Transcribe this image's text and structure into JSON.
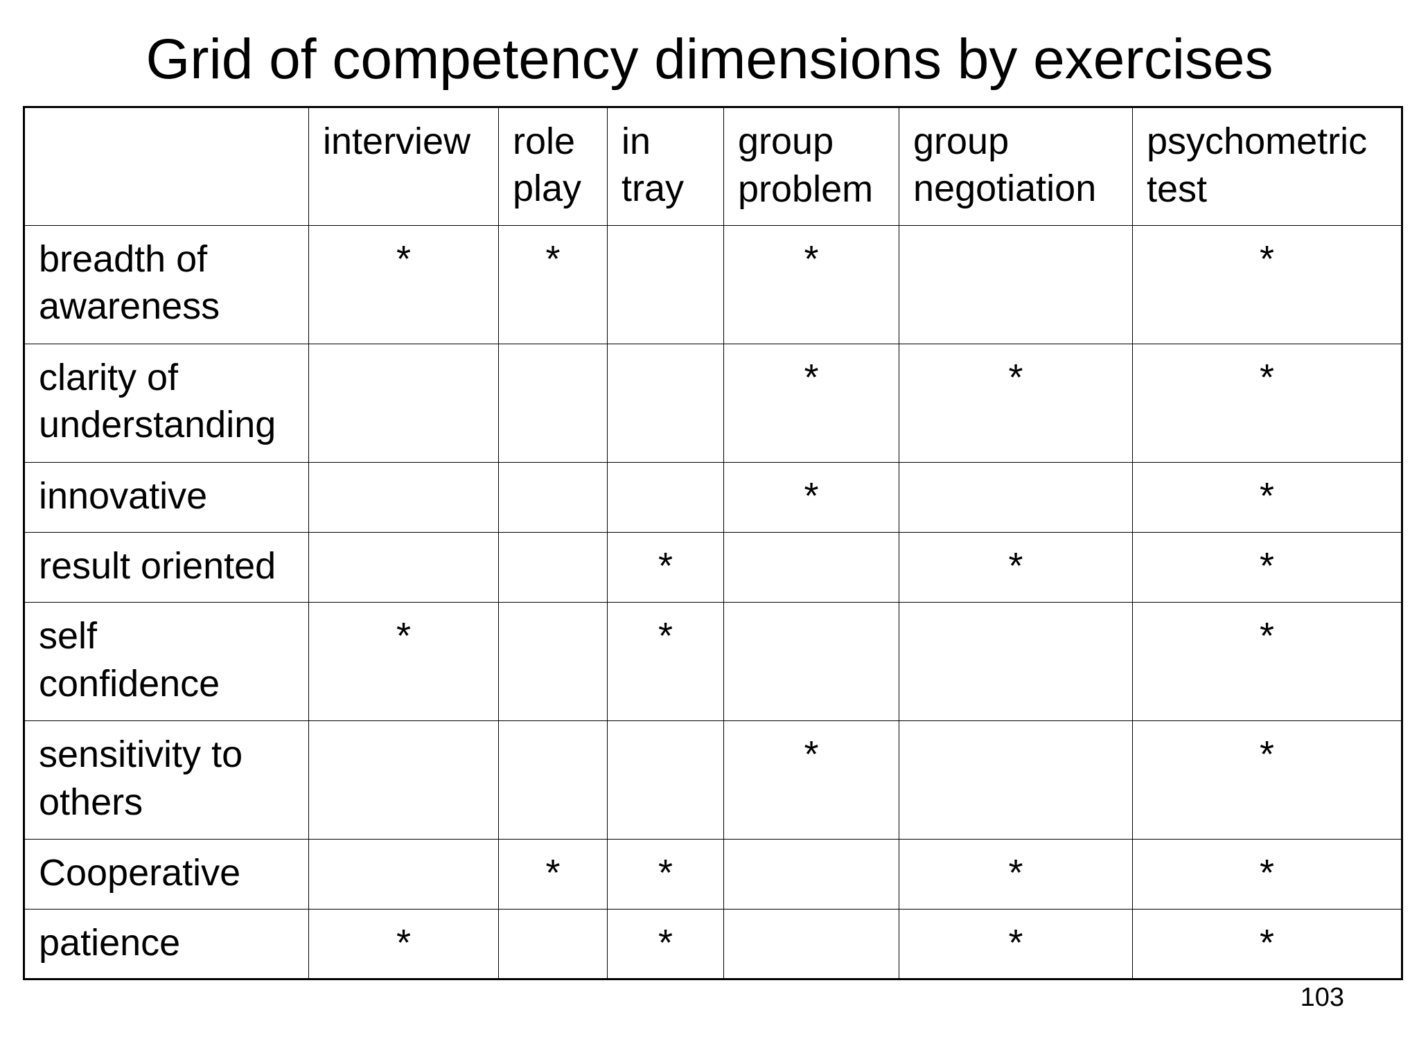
{
  "title": "Grid of competency dimensions by exercises",
  "page_number": "103",
  "columns": [
    {
      "key": "interview",
      "lines": [
        "interview"
      ]
    },
    {
      "key": "role-play",
      "lines": [
        "role",
        "play"
      ]
    },
    {
      "key": "in-tray",
      "lines": [
        "in",
        "tray"
      ]
    },
    {
      "key": "group-problem",
      "lines": [
        "group",
        "problem"
      ]
    },
    {
      "key": "group-negotiation",
      "lines": [
        "group",
        "negotiation"
      ]
    },
    {
      "key": "psychometric-test",
      "lines": [
        "psychometric",
        "test"
      ]
    }
  ],
  "mark_symbol": "*",
  "rows": [
    {
      "key": "breadth-of-awareness",
      "lines": [
        "breadth of",
        "awareness"
      ],
      "marks": [
        true,
        true,
        false,
        true,
        false,
        true
      ]
    },
    {
      "key": "clarity-of-understanding",
      "lines": [
        "clarity of",
        "understanding"
      ],
      "marks": [
        false,
        false,
        false,
        true,
        true,
        true
      ]
    },
    {
      "key": "innovative",
      "lines": [
        "innovative"
      ],
      "marks": [
        false,
        false,
        false,
        true,
        false,
        true
      ]
    },
    {
      "key": "result-oriented",
      "lines": [
        "result oriented"
      ],
      "marks": [
        false,
        false,
        true,
        false,
        true,
        true
      ]
    },
    {
      "key": "self-confidence",
      "lines": [
        "self",
        "confidence"
      ],
      "marks": [
        true,
        false,
        true,
        false,
        false,
        true
      ]
    },
    {
      "key": "sensitivity-to-others",
      "lines": [
        "sensitivity to",
        "others"
      ],
      "marks": [
        false,
        false,
        false,
        true,
        false,
        true
      ]
    },
    {
      "key": "cooperative",
      "lines": [
        "Cooperative"
      ],
      "marks": [
        false,
        true,
        true,
        false,
        true,
        true
      ]
    },
    {
      "key": "patience",
      "lines": [
        "patience"
      ],
      "marks": [
        true,
        false,
        true,
        false,
        true,
        true
      ]
    }
  ]
}
